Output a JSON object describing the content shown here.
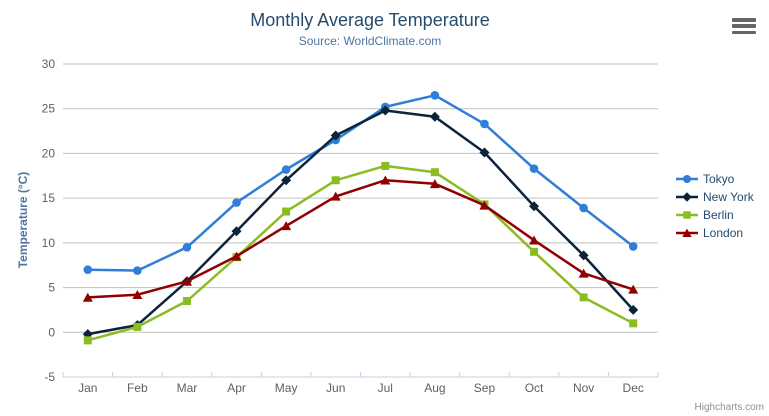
{
  "chart_data": {
    "type": "line",
    "title": "Monthly Average Temperature",
    "subtitle": "Source: WorldClimate.com",
    "xlabel": "",
    "ylabel": "Temperature (°C)",
    "ylim": [
      -5,
      30
    ],
    "y_tick_step": 5,
    "grid": true,
    "legend_position": "right",
    "categories": [
      "Jan",
      "Feb",
      "Mar",
      "Apr",
      "May",
      "Jun",
      "Jul",
      "Aug",
      "Sep",
      "Oct",
      "Nov",
      "Dec"
    ],
    "series": [
      {
        "name": "Tokyo",
        "color": "#2f7ed8",
        "marker": "circle",
        "values": [
          7.0,
          6.9,
          9.5,
          14.5,
          18.2,
          21.5,
          25.2,
          26.5,
          23.3,
          18.3,
          13.9,
          9.6
        ]
      },
      {
        "name": "New York",
        "color": "#0d233a",
        "marker": "diamond",
        "values": [
          -0.2,
          0.8,
          5.7,
          11.3,
          17.0,
          22.0,
          24.8,
          24.1,
          20.1,
          14.1,
          8.6,
          2.5
        ]
      },
      {
        "name": "Berlin",
        "color": "#8bbc21",
        "marker": "square",
        "values": [
          -0.9,
          0.6,
          3.5,
          8.4,
          13.5,
          17.0,
          18.6,
          17.9,
          14.3,
          9.0,
          3.9,
          1.0
        ]
      },
      {
        "name": "London",
        "color": "#910000",
        "marker": "triangle",
        "values": [
          3.9,
          4.2,
          5.7,
          8.5,
          11.9,
          15.2,
          17.0,
          16.6,
          14.2,
          10.3,
          6.6,
          4.8
        ]
      }
    ]
  },
  "colors": {
    "title": "#274b6d",
    "subtitle": "#4d759e",
    "axis_title": "#4d759e",
    "tick_label": "#606060",
    "grid": "#c0c0c0",
    "x_axis_line": "#c0d0e0",
    "legend_text": "#274b6d",
    "credits": "#909090",
    "background": "#ffffff",
    "export_icon": "#666666"
  },
  "credits": {
    "text": "Highcharts.com"
  },
  "export_menu": {
    "icon": "hamburger-icon"
  }
}
